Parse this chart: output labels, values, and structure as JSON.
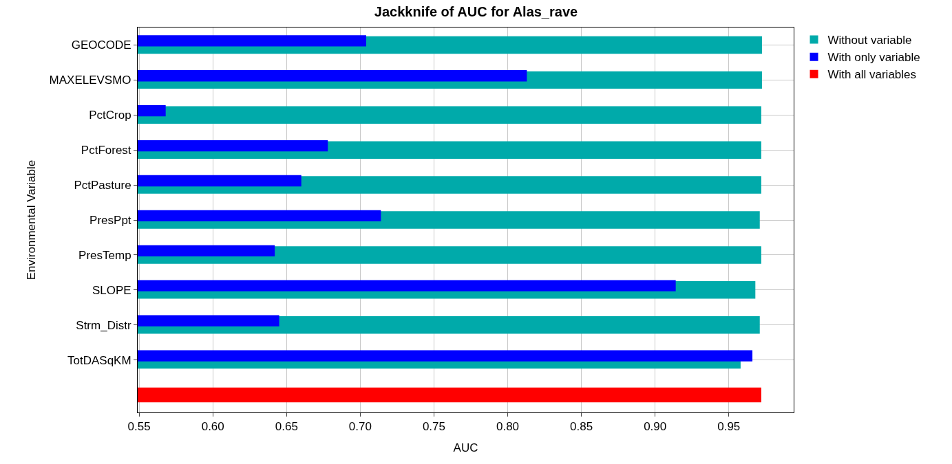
{
  "chart_data": {
    "type": "bar",
    "orientation": "horizontal",
    "title": "Jackknife of AUC for Alas_rave",
    "xlabel": "AUC",
    "ylabel": "Environmental Variable",
    "categories": [
      "GEOCODE",
      "MAXELEVSMO",
      "PctCrop",
      "PctForest",
      "PctPasture",
      "PresPpt",
      "PresTemp",
      "SLOPE",
      "Strm_Distr",
      "TotDASqKM",
      null
    ],
    "series": [
      {
        "name": "Without variable",
        "color": "#00aaaa",
        "values": [
          0.9725,
          0.9725,
          0.972,
          0.972,
          0.972,
          0.971,
          0.972,
          0.968,
          0.971,
          0.958,
          null
        ]
      },
      {
        "name": "With only variable",
        "color": "#0000ff",
        "values": [
          0.704,
          0.813,
          0.568,
          0.678,
          0.66,
          0.714,
          0.642,
          0.914,
          0.645,
          0.966,
          null
        ]
      },
      {
        "name": "With all variables",
        "color": "#ff0000",
        "values": [
          null,
          null,
          null,
          null,
          null,
          null,
          null,
          null,
          null,
          null,
          0.972
        ]
      }
    ],
    "xlim": [
      0.549,
      0.994
    ],
    "xticks": [
      {
        "value": 0.55,
        "label": "0.55"
      },
      {
        "value": 0.6,
        "label": "0.60"
      },
      {
        "value": 0.65,
        "label": "0.65"
      },
      {
        "value": 0.7,
        "label": "0.70"
      },
      {
        "value": 0.75,
        "label": "0.75"
      },
      {
        "value": 0.8,
        "label": "0.80"
      },
      {
        "value": 0.85,
        "label": "0.85"
      },
      {
        "value": 0.9,
        "label": "0.90"
      },
      {
        "value": 0.95,
        "label": "0.95"
      }
    ],
    "grid": true,
    "legend": "top right"
  }
}
